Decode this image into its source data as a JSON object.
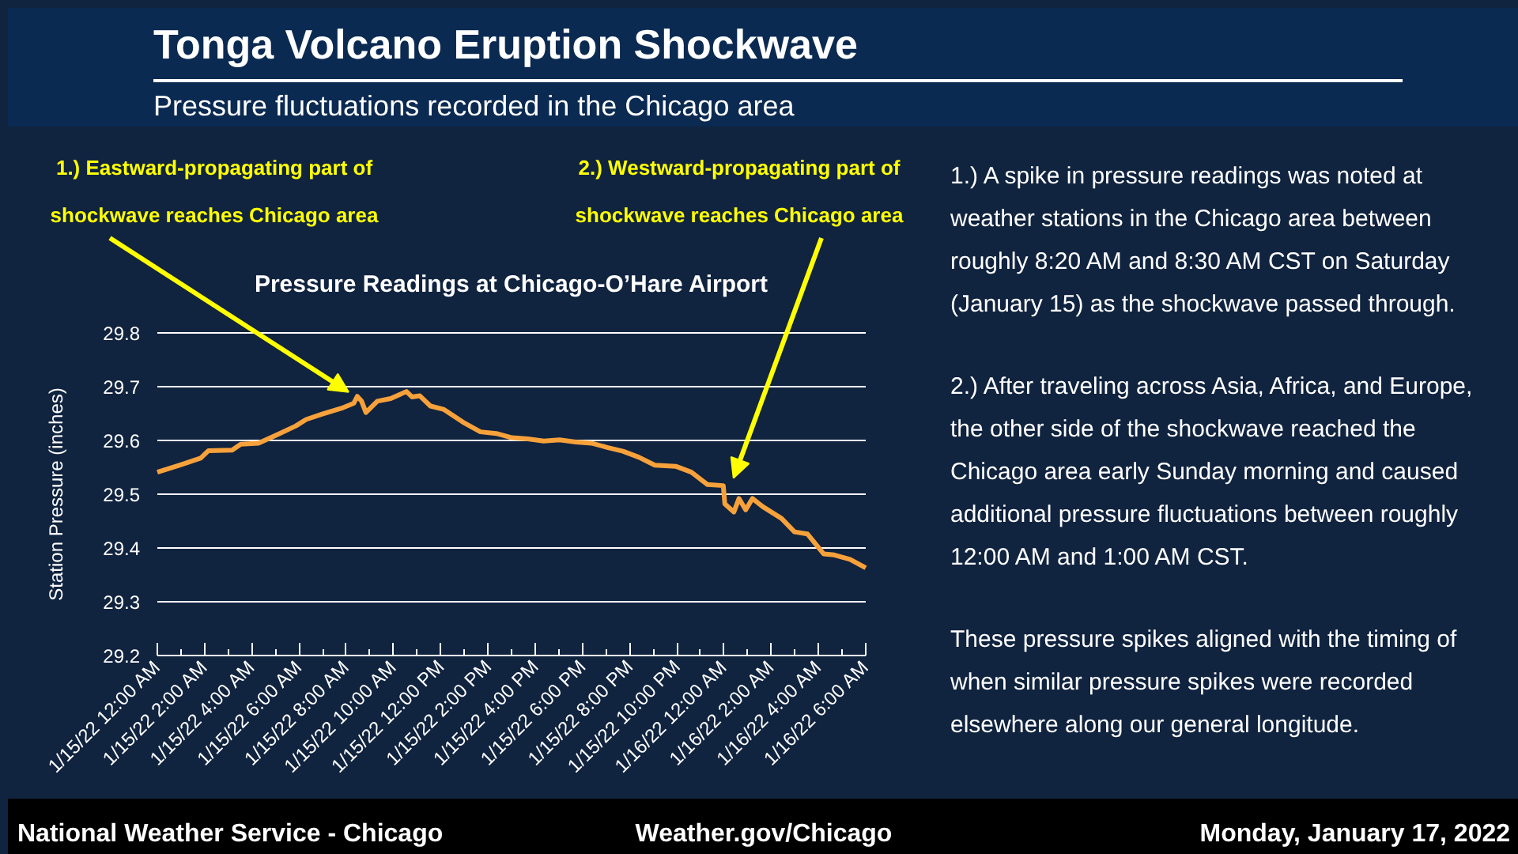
{
  "chart_data": {
    "type": "line",
    "title": "Tonga Volcano Eruption Shockwave",
    "subtitle": "Pressure fluctuations recorded in the Chicago area",
    "ylabel": "Station Pressure (inches)",
    "annotations": [
      "Pressure Readings at Chicago-O’Hare Airport",
      {
        "text": "1.) Eastward-propagating part of\nshockwave reaches Chicago area",
        "x": "2022-01-15T08:24",
        "y": 29.68
      },
      {
        "text": "2.) Westward-propagating part of\nshockwave reaches Chicago area",
        "x": "2022-01-16T00:12",
        "y": 29.52
      },
      "1.) A spike in pressure readings was noted at weather stations in the Chicago area between roughly 8:20 AM and 8:30 AM CST on Saturday (January 15) as the shockwave passed through.",
      "2.) After traveling across Asia, Africa, and Europe, the other side of the shockwave reached the Chicago area early Sunday morning and caused additional pressure fluctuations between roughly 12:00 AM and 1:00 AM CST.",
      "These pressure spikes aligned with the timing of when similar pressure spikes were recorded elsewhere along our general longitude.",
      "National Weather Service - Chicago",
      "Weather.gov/Chicago",
      "Monday, January 17, 2022"
    ],
    "x": [
      "2022-01-15T00:00",
      "2022-01-15T00:56",
      "2022-01-15T01:50",
      "2022-01-15T02:10",
      "2022-01-15T03:10",
      "2022-01-15T03:32",
      "2022-01-15T04:17",
      "2022-01-15T05:11",
      "2022-01-15T05:52",
      "2022-01-15T06:18",
      "2022-01-15T06:59",
      "2022-01-15T07:52",
      "2022-01-15T08:19",
      "2022-01-15T08:28",
      "2022-01-15T08:39",
      "2022-01-15T08:50",
      "2022-01-15T09:19",
      "2022-01-15T09:53",
      "2022-01-15T10:33",
      "2022-01-15T10:47",
      "2022-01-15T11:07",
      "2022-01-15T11:34",
      "2022-01-15T12:07",
      "2022-01-15T13:01",
      "2022-01-15T13:41",
      "2022-01-15T14:21",
      "2022-01-15T15:01",
      "2022-01-15T15:41",
      "2022-01-15T16:22",
      "2022-01-15T17:02",
      "2022-01-15T17:43",
      "2022-01-15T18:23",
      "2022-01-15T19:03",
      "2022-01-15T19:43",
      "2022-01-15T20:23",
      "2022-01-15T21:04",
      "2022-01-15T21:57",
      "2022-01-15T22:37",
      "2022-01-15T23:18",
      "2022-01-15T23:58",
      "2022-01-16T00:02",
      "2022-01-16T00:25",
      "2022-01-16T00:38",
      "2022-01-16T00:55",
      "2022-01-16T01:12",
      "2022-01-16T01:38",
      "2022-01-16T02:26",
      "2022-01-16T02:59",
      "2022-01-16T03:32",
      "2022-01-16T04:13",
      "2022-01-16T04:40",
      "2022-01-16T05:20",
      "2022-01-16T06:00"
    ],
    "series": [
      {
        "color": "#f7a13b",
        "values": [
          29.541,
          29.554,
          29.567,
          29.581,
          29.582,
          29.593,
          29.595,
          29.613,
          29.627,
          29.639,
          29.649,
          29.661,
          29.669,
          29.682,
          29.673,
          29.652,
          29.673,
          29.678,
          29.691,
          29.681,
          29.683,
          29.664,
          29.658,
          29.632,
          29.616,
          29.613,
          29.605,
          29.603,
          29.599,
          29.601,
          29.597,
          29.595,
          29.587,
          29.58,
          29.569,
          29.554,
          29.552,
          29.541,
          29.518,
          29.516,
          29.482,
          29.467,
          29.492,
          29.471,
          29.492,
          29.477,
          29.455,
          29.43,
          29.426,
          29.389,
          29.387,
          29.379,
          29.363
        ]
      }
    ],
    "xlim": [
      "2022-01-15T00:00",
      "2022-01-16T06:00"
    ],
    "xticks": [
      {
        "value": "2022-01-15T00:00",
        "label": "1/15/22 12:00 AM"
      },
      {
        "value": "2022-01-15T01:00",
        "label": null
      },
      {
        "value": "2022-01-15T02:00",
        "label": "1/15/22 2:00 AM"
      },
      {
        "value": "2022-01-15T03:00",
        "label": null
      },
      {
        "value": "2022-01-15T04:00",
        "label": "1/15/22 4:00 AM"
      },
      {
        "value": "2022-01-15T05:00",
        "label": null
      },
      {
        "value": "2022-01-15T06:00",
        "label": "1/15/22 6:00 AM"
      },
      {
        "value": "2022-01-15T07:00",
        "label": null
      },
      {
        "value": "2022-01-15T08:00",
        "label": "1/15/22 8:00 AM"
      },
      {
        "value": "2022-01-15T09:00",
        "label": null
      },
      {
        "value": "2022-01-15T10:00",
        "label": "1/15/22 10:00 AM"
      },
      {
        "value": "2022-01-15T11:00",
        "label": null
      },
      {
        "value": "2022-01-15T12:00",
        "label": "1/15/22 12:00 PM"
      },
      {
        "value": "2022-01-15T13:00",
        "label": null
      },
      {
        "value": "2022-01-15T14:00",
        "label": "1/15/22 2:00 PM"
      },
      {
        "value": "2022-01-15T15:00",
        "label": null
      },
      {
        "value": "2022-01-15T16:00",
        "label": "1/15/22 4:00 PM"
      },
      {
        "value": "2022-01-15T17:00",
        "label": null
      },
      {
        "value": "2022-01-15T18:00",
        "label": "1/15/22 6:00 PM"
      },
      {
        "value": "2022-01-15T19:00",
        "label": null
      },
      {
        "value": "2022-01-15T20:00",
        "label": "1/15/22 8:00 PM"
      },
      {
        "value": "2022-01-15T21:00",
        "label": null
      },
      {
        "value": "2022-01-15T22:00",
        "label": "1/15/22 10:00 PM"
      },
      {
        "value": "2022-01-15T23:00",
        "label": null
      },
      {
        "value": "2022-01-16T00:00",
        "label": "1/16/22 12:00 AM"
      },
      {
        "value": "2022-01-16T01:00",
        "label": null
      },
      {
        "value": "2022-01-16T02:00",
        "label": "1/16/22 2:00 AM"
      },
      {
        "value": "2022-01-16T03:00",
        "label": null
      },
      {
        "value": "2022-01-16T04:00",
        "label": "1/16/22 4:00 AM"
      },
      {
        "value": "2022-01-16T05:00",
        "label": null
      },
      {
        "value": "2022-01-16T06:00",
        "label": "1/16/22 6:00 AM"
      }
    ],
    "ylim": [
      29.2,
      29.8
    ],
    "yticks": [
      29.2,
      29.3,
      29.4,
      29.5,
      29.6,
      29.7,
      29.8
    ],
    "grid": "y"
  }
}
